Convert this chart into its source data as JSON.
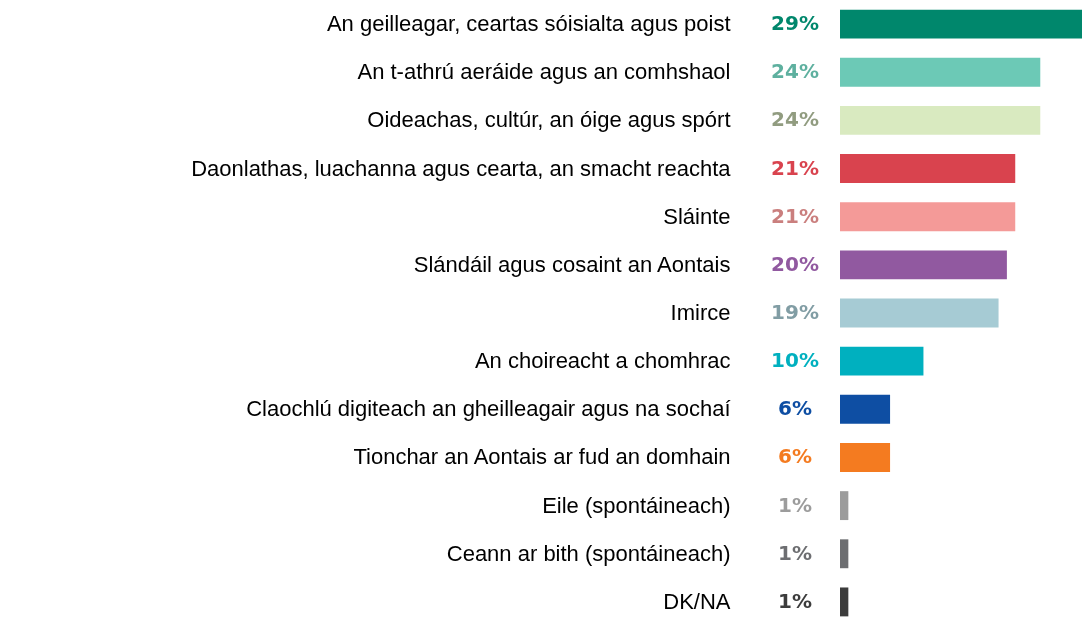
{
  "chart_data": {
    "type": "bar",
    "orientation": "horizontal",
    "categories": [
      "An geilleagar, ceartas sóisialta agus poist",
      "An t-athrú aeráide agus an comhshaol",
      "Oideachas, cultúr, an óige agus spórt",
      "Daonlathas, luachanna agus cearta, an smacht reachta",
      "Sláinte",
      "Slándáil agus cosaint an Aontais",
      "Imirce",
      "An choireacht a chomhrac",
      "Claochlú digiteach an gheilleagair agus na sochaí",
      "Tionchar an Aontais ar fud an domhain",
      "Eile (spontáineach)",
      "Ceann ar bith (spontáineach)",
      "DK/NA"
    ],
    "values": [
      29,
      24,
      24,
      21,
      21,
      20,
      19,
      10,
      6,
      6,
      1,
      1,
      1
    ],
    "value_labels": [
      "29%",
      "24%",
      "24%",
      "21%",
      "21%",
      "20%",
      "19%",
      "10%",
      "6%",
      "6%",
      "1%",
      "1%",
      "1%"
    ],
    "colors": [
      "#00876c",
      "#6cc9b6",
      "#d9eac0",
      "#d9434e",
      "#f49a98",
      "#9159a0",
      "#a6cbd4",
      "#00b0bf",
      "#0e4ea3",
      "#f47b20",
      "#9c9c9c",
      "#6d6e71",
      "#3c3c3c"
    ],
    "grid": false
  }
}
